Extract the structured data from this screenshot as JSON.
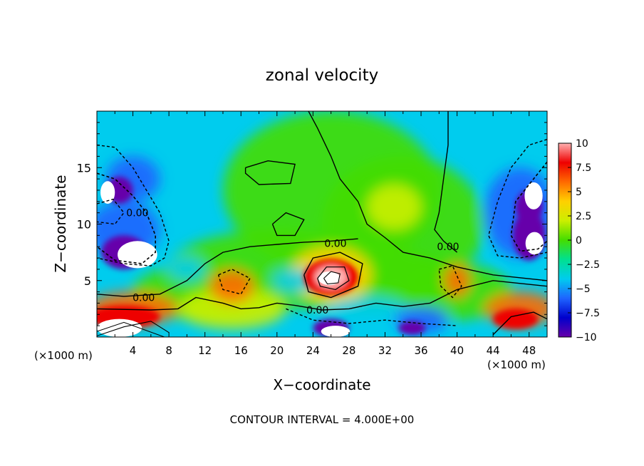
{
  "chart_data": {
    "type": "heatmap",
    "title": "zonal velocity",
    "xlabel": "X−coordinate",
    "ylabel": "Z−coordinate",
    "x_unit": "(×1000 m)",
    "footer": "CONTOUR INTERVAL = 4.000E+00",
    "xlim": [
      0,
      50
    ],
    "ylim": [
      0,
      20
    ],
    "x_ticks": [
      "4",
      "8",
      "12",
      "16",
      "20",
      "24",
      "28",
      "32",
      "36",
      "40",
      "44",
      "48"
    ],
    "y_ticks": [
      "5",
      "10",
      "15"
    ],
    "colorbar": {
      "range": [
        -10,
        10
      ],
      "tick_labels": [
        "10",
        "7.5",
        "5",
        "2.5",
        "0",
        "−2.5",
        "−5",
        "−7.5",
        "−10"
      ]
    },
    "contour_labels": [
      {
        "text": "0.00",
        "x": 5.2,
        "y": 3.5
      },
      {
        "text": "0.00",
        "x": 26.5,
        "y": 8.3
      },
      {
        "text": "0.00",
        "x": 24.5,
        "y": 2.4
      },
      {
        "text": "0.00",
        "x": 39.0,
        "y": 8.0
      },
      {
        "text": "0.00",
        "x": 4.5,
        "y": 11.0
      }
    ],
    "colors": {
      "ramp": [
        "#6600aa",
        "#0000cc",
        "#1e64ff",
        "#00ccee",
        "#00e090",
        "#44dd00",
        "#ccee00",
        "#ffd000",
        "#ff6a00",
        "#ee0000",
        "#ffb0b0"
      ],
      "blue": "#1e64ff",
      "cyan": "#00ccee",
      "green": "#44dd00",
      "yellow": "#ffd000",
      "orange": "#ff6a00",
      "red": "#ee0000",
      "purple": "#6600aa"
    }
  }
}
